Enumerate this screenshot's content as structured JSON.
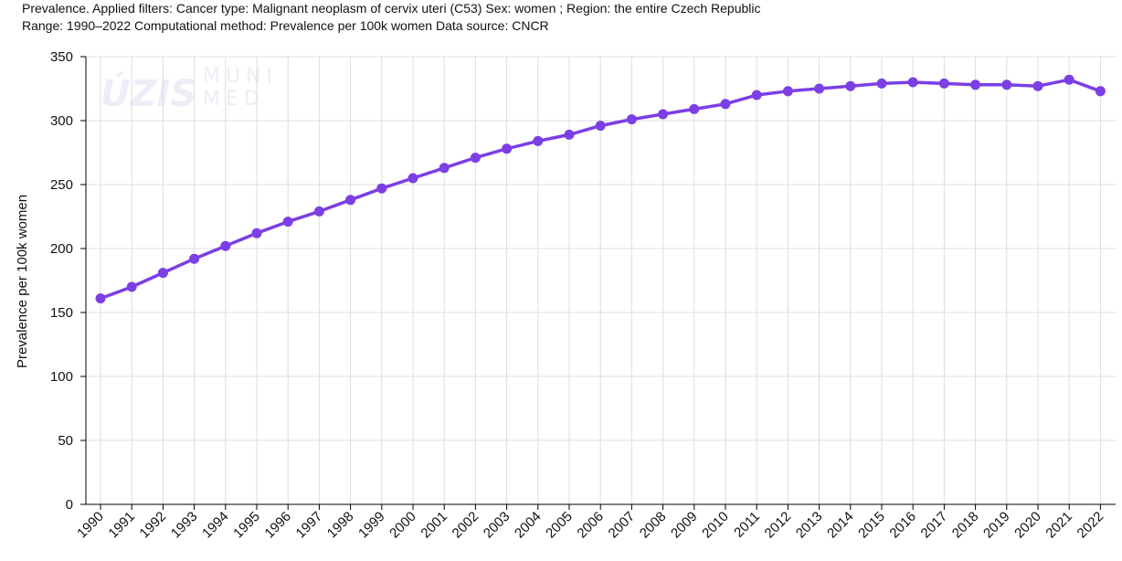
{
  "header": {
    "line1": "Prevalence. Applied filters: Cancer type: Malignant neoplasm of cervix uteri (C53) Sex: women ; Region: the entire Czech Republic",
    "line2": "Range: 1990–2022 Computational method: Prevalence per 100k women Data source: CNCR"
  },
  "watermark": {
    "logo1": "ÚZIS",
    "logo2_top": "MUNI",
    "logo2_bottom": "MED"
  },
  "colors": {
    "series": "#7b3fe4",
    "grid": "#dddddd",
    "axis": "#000000"
  },
  "chart_data": {
    "type": "line",
    "title": "",
    "xlabel": "",
    "ylabel": "Prevalence per 100k women",
    "ylim": [
      0,
      350
    ],
    "yticks": [
      0,
      50,
      100,
      150,
      200,
      250,
      300,
      350
    ],
    "grid": true,
    "x": [
      "1990",
      "1991",
      "1992",
      "1993",
      "1994",
      "1995",
      "1996",
      "1997",
      "1998",
      "1999",
      "2000",
      "2001",
      "2002",
      "2003",
      "2004",
      "2005",
      "2006",
      "2007",
      "2008",
      "2009",
      "2010",
      "2011",
      "2012",
      "2013",
      "2014",
      "2015",
      "2016",
      "2017",
      "2018",
      "2019",
      "2020",
      "2021",
      "2022"
    ],
    "series": [
      {
        "values": [
          161,
          170,
          181,
          192,
          202,
          212,
          221,
          229,
          238,
          247,
          255,
          263,
          271,
          278,
          284,
          289,
          296,
          301,
          305,
          309,
          313,
          320,
          323,
          325,
          327,
          329,
          330,
          329,
          328,
          328,
          327,
          332,
          323
        ]
      }
    ]
  }
}
